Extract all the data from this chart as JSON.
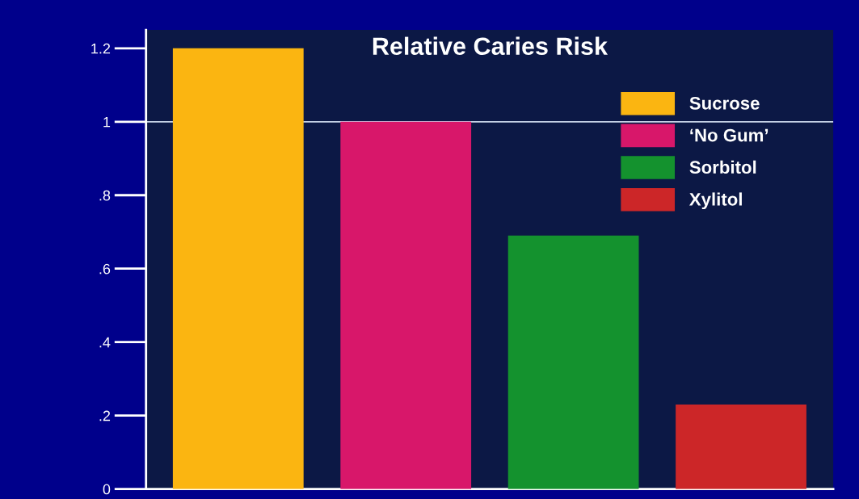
{
  "chart_data": {
    "type": "bar",
    "title": "Relative Caries Risk",
    "categories": [
      null,
      null,
      null,
      null
    ],
    "series": [
      {
        "name": "Sucrose",
        "color": "#fbb511",
        "values": [
          1.2,
          null,
          null,
          null
        ]
      },
      {
        "name": "‘No Gum’",
        "color": "#d8176a",
        "values": [
          null,
          1.0,
          null,
          null
        ]
      },
      {
        "name": "Sorbitol",
        "color": "#14922e",
        "values": [
          null,
          null,
          0.69,
          null
        ]
      },
      {
        "name": "Xylitol",
        "color": "#cc2628",
        "values": [
          null,
          null,
          null,
          0.23
        ]
      }
    ],
    "ylim": [
      0,
      1.25
    ],
    "yticks": [
      0,
      {
        "value": 0.2,
        "label": ".2"
      },
      {
        "value": 0.4,
        "label": ".4"
      },
      {
        "value": 0.6,
        "label": ".6"
      },
      {
        "value": 0.8,
        "label": ".8"
      },
      1,
      1.2
    ],
    "ref_lines": [
      {
        "axis": "y",
        "value": 1,
        "color": "#c8d4e8"
      }
    ],
    "legend": "top right",
    "grid": false
  }
}
